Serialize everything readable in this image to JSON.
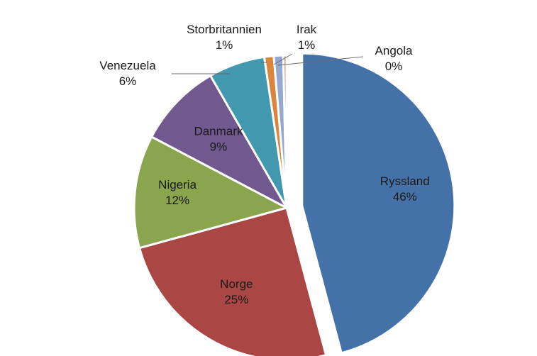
{
  "chart_data": {
    "type": "pie",
    "title": "",
    "categories": [
      "Ryssland",
      "Norge",
      "Nigeria",
      "Danmark",
      "Venezuela",
      "Storbritannien",
      "Irak",
      "Angola"
    ],
    "values": [
      46,
      25,
      12,
      9,
      6,
      1,
      1,
      0
    ],
    "labels_percent": [
      "46%",
      "25%",
      "12%",
      "9%",
      "6%",
      "1%",
      "1%",
      "0%"
    ],
    "colors": [
      "#4472a8",
      "#aa4643",
      "#89a54e",
      "#71588f",
      "#4198af",
      "#db843d",
      "#93a9cf",
      "#d19392"
    ],
    "exploded": [
      "Ryssland"
    ],
    "legend": "none"
  }
}
